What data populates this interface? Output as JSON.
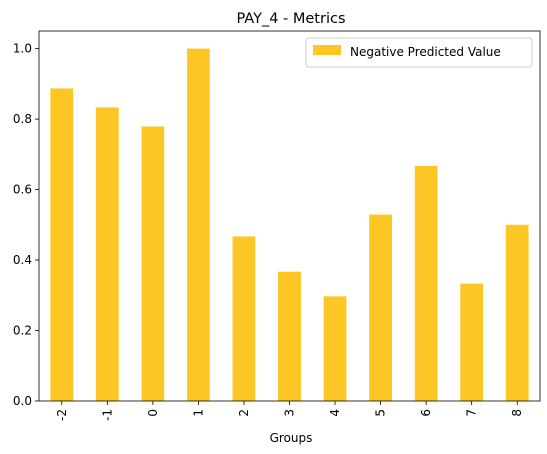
{
  "chart_data": {
    "type": "bar",
    "title": "PAY_4 - Metrics",
    "xlabel": "Groups",
    "ylabel": "",
    "categories": [
      "-2",
      "-1",
      "0",
      "1",
      "2",
      "3",
      "4",
      "5",
      "6",
      "7",
      "8"
    ],
    "series": [
      {
        "name": "Negative Predicted Value",
        "values": [
          0.887,
          0.833,
          0.779,
          1.0,
          0.467,
          0.367,
          0.297,
          0.529,
          0.667,
          0.333,
          0.5
        ],
        "color": "#fcc624"
      }
    ],
    "ylim": [
      0,
      1.05
    ],
    "yticks": [
      "0.0",
      "0.2",
      "0.4",
      "0.6",
      "0.8",
      "1.0"
    ],
    "ytick_values": [
      0,
      0.2,
      0.4,
      0.6,
      0.8,
      1.0
    ],
    "grid": false,
    "legend_position": "top-right"
  }
}
